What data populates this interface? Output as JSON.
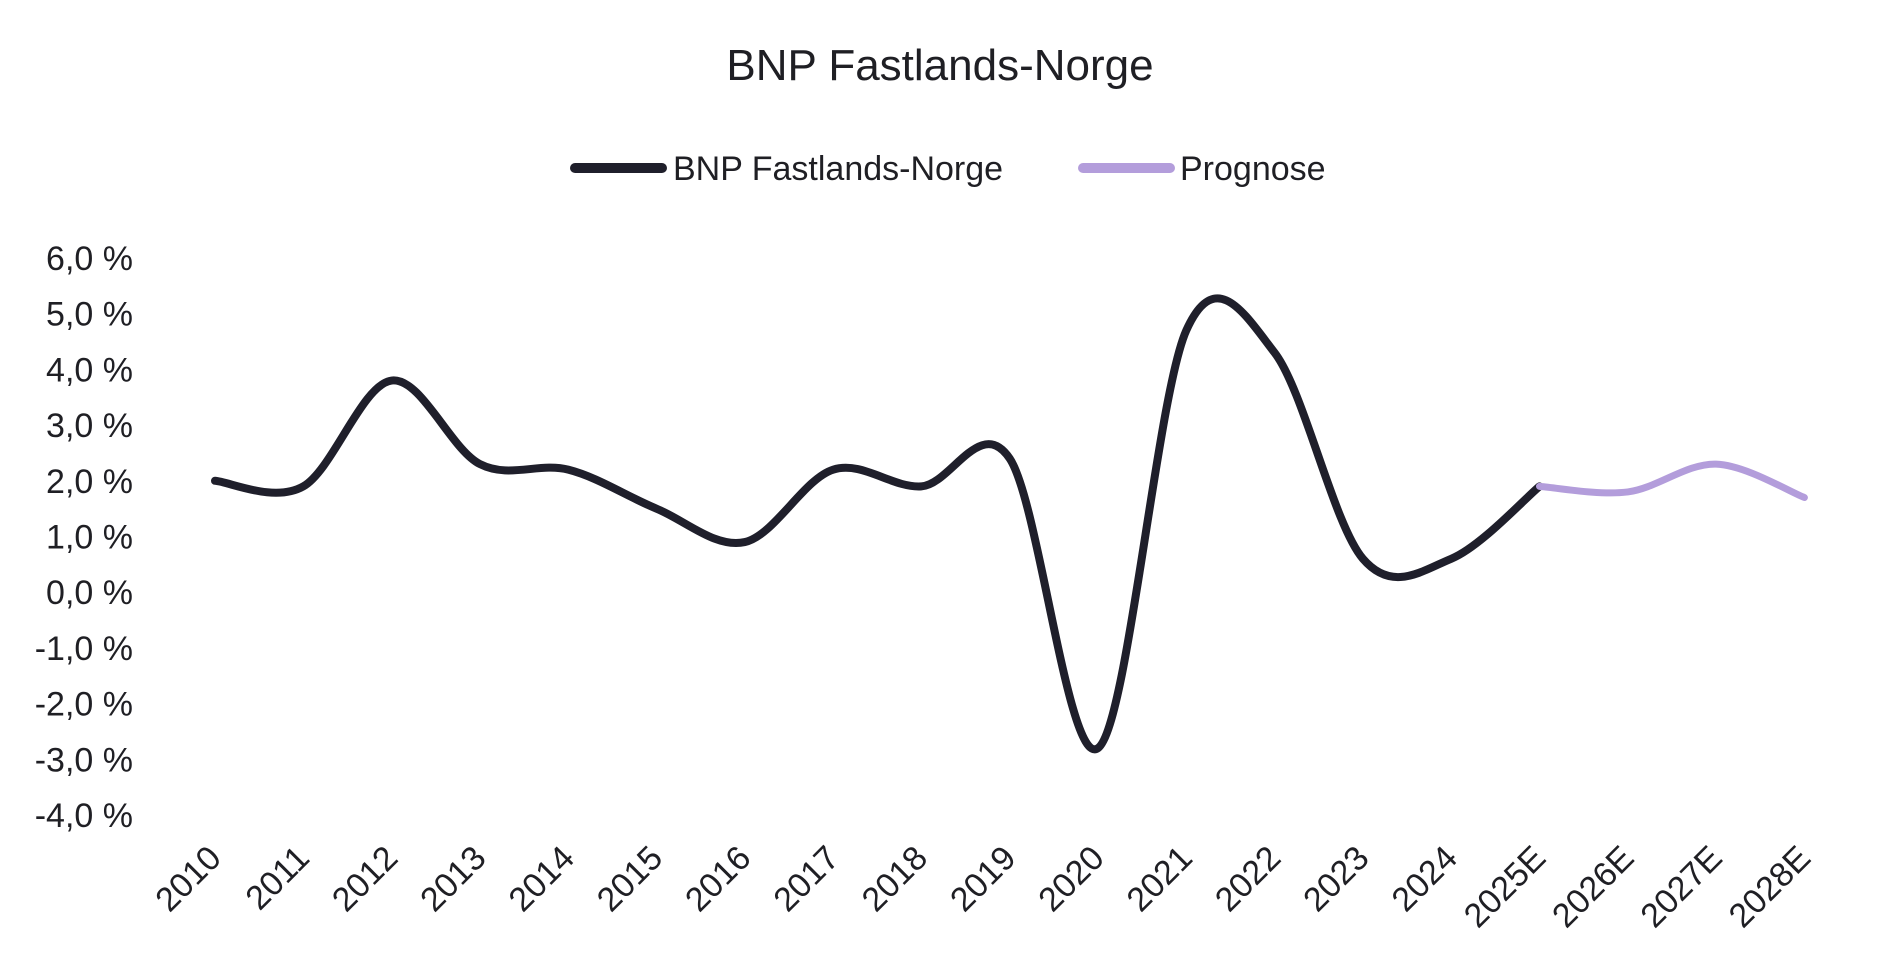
{
  "chart_data": {
    "type": "line",
    "title": "BNP Fastlands-Norge",
    "xlabel": "",
    "ylabel": "",
    "categories": [
      "2010",
      "2011",
      "2012",
      "2013",
      "2014",
      "2015",
      "2016",
      "2017",
      "2018",
      "2019",
      "2020",
      "2021",
      "2022",
      "2023",
      "2024",
      "2025E",
      "2026E",
      "2027E",
      "2028E"
    ],
    "y_ticks": [
      6.0,
      5.0,
      4.0,
      3.0,
      2.0,
      1.0,
      0.0,
      -1.0,
      -2.0,
      -3.0,
      -4.0
    ],
    "y_tick_labels": [
      "6,0 %",
      "5,0 %",
      "4,0 %",
      "3,0 %",
      "2,0 %",
      "1,0 %",
      "0,0 %",
      "-1,0 %",
      "-2,0 %",
      "-3,0 %",
      "-4,0 %"
    ],
    "ylim": [
      -4.0,
      6.0
    ],
    "grid": false,
    "legend_position": "top-center",
    "series": [
      {
        "name": "BNP Fastlands-Norge",
        "color": "#1f1f2b",
        "values": [
          2.0,
          1.9,
          3.8,
          2.3,
          2.2,
          1.5,
          0.9,
          2.2,
          1.9,
          2.4,
          -2.8,
          4.7,
          4.3,
          0.6,
          0.6,
          1.9,
          null,
          null,
          null
        ]
      },
      {
        "name": "Prognose",
        "color": "#b39ddb",
        "values": [
          null,
          null,
          null,
          null,
          null,
          null,
          null,
          null,
          null,
          null,
          null,
          null,
          null,
          null,
          null,
          1.9,
          1.8,
          2.3,
          1.7
        ]
      }
    ]
  }
}
